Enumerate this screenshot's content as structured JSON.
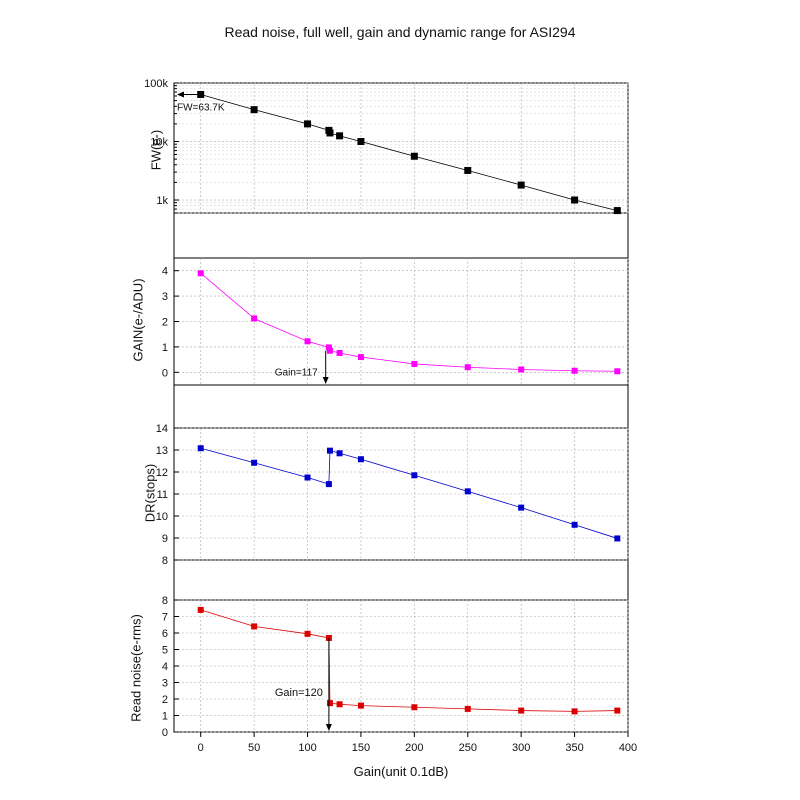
{
  "chart_data": {
    "title": "Read noise, full well, gain and dynamic range for ASI294",
    "xlabel": "Gain(unit 0.1dB)",
    "xlim": [
      -25,
      400
    ],
    "x_ticks": [
      "0",
      "50",
      "100",
      "150",
      "200",
      "250",
      "300",
      "350",
      "400"
    ],
    "grid": true,
    "panels": [
      {
        "type": "scatter",
        "ylabel": "FW(e-)",
        "yscale": "log",
        "ylim": [
          600,
          100000
        ],
        "y_ticks": [
          "1k",
          "10k",
          "100k"
        ],
        "color": "#000000",
        "x": [
          0,
          50,
          100,
          120,
          121,
          130,
          150,
          200,
          250,
          300,
          350,
          390
        ],
        "y": [
          63700,
          35000,
          20000,
          15500,
          14000,
          12500,
          10000,
          5600,
          3200,
          1800,
          1000,
          660
        ],
        "annotation": "FW=63.7K"
      },
      {
        "type": "scatter",
        "ylabel": "GAIN(e-/ADU)",
        "ylim": [
          -0.5,
          4.5
        ],
        "y_ticks": [
          "0",
          "1",
          "2",
          "3",
          "4"
        ],
        "color": "#ff00ff",
        "x": [
          0,
          50,
          100,
          120,
          121,
          130,
          150,
          200,
          250,
          300,
          350,
          390
        ],
        "y": [
          3.9,
          2.12,
          1.22,
          0.98,
          0.85,
          0.76,
          0.6,
          0.33,
          0.2,
          0.11,
          0.06,
          0.04
        ],
        "annotation": "Gain=117"
      },
      {
        "type": "scatter",
        "ylabel": "DR(stops)",
        "ylim": [
          8,
          14
        ],
        "y_ticks": [
          "8",
          "9",
          "10",
          "11",
          "12",
          "13",
          "14"
        ],
        "color": "#0000cc",
        "x": [
          0,
          50,
          100,
          120,
          121,
          130,
          150,
          200,
          250,
          300,
          350,
          390
        ],
        "y": [
          13.08,
          12.42,
          11.75,
          11.45,
          12.97,
          12.85,
          12.58,
          11.85,
          11.12,
          10.38,
          9.6,
          8.98
        ]
      },
      {
        "type": "scatter",
        "ylabel": "Read noise(e-rms)",
        "ylim": [
          0,
          8
        ],
        "y_ticks": [
          "0",
          "1",
          "2",
          "3",
          "4",
          "5",
          "6",
          "7",
          "8"
        ],
        "color": "#dd0000",
        "x": [
          0,
          50,
          100,
          120,
          121,
          130,
          150,
          200,
          250,
          300,
          350,
          390
        ],
        "y": [
          7.4,
          6.4,
          5.95,
          5.7,
          1.75,
          1.68,
          1.6,
          1.5,
          1.4,
          1.3,
          1.25,
          1.3
        ],
        "annotation": "Gain=120"
      }
    ]
  }
}
